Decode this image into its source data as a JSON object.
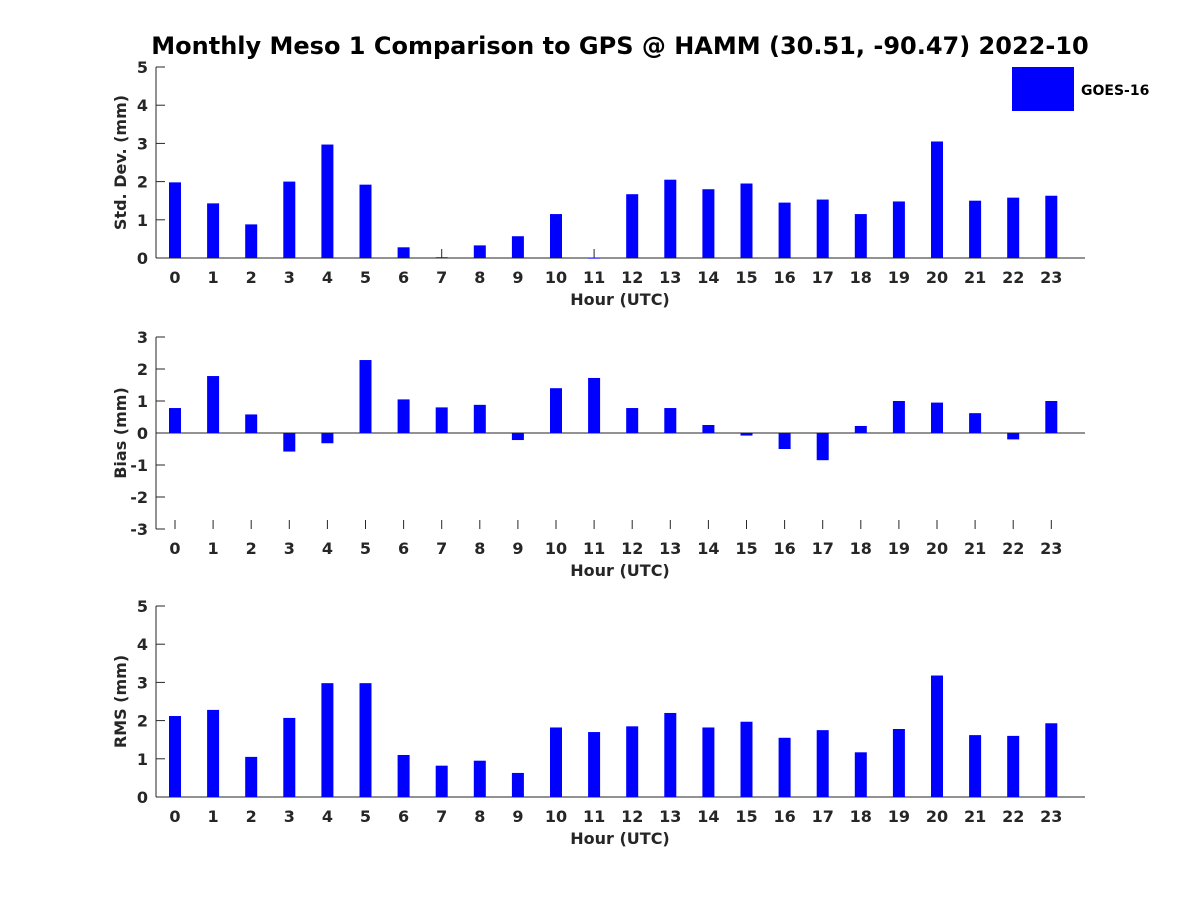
{
  "title": "Monthly Meso 1 Comparison to GPS @ HAMM (30.51, -90.47) 2022-10",
  "legend": {
    "label": "GOES-16",
    "color": "#0000ff",
    "placement": "top-right"
  },
  "chart_data": [
    {
      "type": "bar",
      "ylabel": "Std. Dev. (mm)",
      "xlabel": "Hour (UTC)",
      "ylim": [
        0,
        5
      ],
      "yticks": [
        0,
        1,
        2,
        3,
        4,
        5
      ],
      "categories": [
        "0",
        "1",
        "2",
        "3",
        "4",
        "5",
        "6",
        "7",
        "8",
        "9",
        "10",
        "11",
        "12",
        "13",
        "14",
        "15",
        "16",
        "17",
        "18",
        "19",
        "20",
        "21",
        "22",
        "23"
      ],
      "series": [
        {
          "values": [
            1.98,
            1.43,
            0.88,
            2.0,
            2.97,
            1.92,
            0.28,
            0.02,
            0.33,
            0.57,
            1.15,
            0.0,
            1.67,
            2.05,
            1.8,
            1.95,
            1.45,
            1.53,
            1.15,
            1.48,
            3.05,
            1.5,
            1.58,
            1.63
          ]
        }
      ],
      "color": "#0000ff",
      "grid": false
    },
    {
      "type": "bar",
      "ylabel": "Bias (mm)",
      "xlabel": "Hour (UTC)",
      "ylim": [
        -3,
        3
      ],
      "yticks": [
        -3,
        -2,
        -1,
        0,
        1,
        2,
        3
      ],
      "categories": [
        "0",
        "1",
        "2",
        "3",
        "4",
        "5",
        "6",
        "7",
        "8",
        "9",
        "10",
        "11",
        "12",
        "13",
        "14",
        "15",
        "16",
        "17",
        "18",
        "19",
        "20",
        "21",
        "22",
        "23"
      ],
      "series": [
        {
          "values": [
            0.78,
            1.78,
            0.58,
            -0.58,
            -0.32,
            2.28,
            1.05,
            0.8,
            0.88,
            -0.22,
            1.4,
            1.72,
            0.78,
            0.78,
            0.25,
            -0.08,
            -0.5,
            -0.85,
            0.22,
            1.0,
            0.95,
            0.62,
            -0.2,
            1.0
          ]
        }
      ],
      "color": "#0000ff",
      "grid": false
    },
    {
      "type": "bar",
      "ylabel": "RMS (mm)",
      "xlabel": "Hour (UTC)",
      "ylim": [
        0,
        5
      ],
      "yticks": [
        0,
        1,
        2,
        3,
        4,
        5
      ],
      "categories": [
        "0",
        "1",
        "2",
        "3",
        "4",
        "5",
        "6",
        "7",
        "8",
        "9",
        "10",
        "11",
        "12",
        "13",
        "14",
        "15",
        "16",
        "17",
        "18",
        "19",
        "20",
        "21",
        "22",
        "23"
      ],
      "series": [
        {
          "values": [
            2.12,
            2.28,
            1.05,
            2.07,
            2.98,
            2.98,
            1.1,
            0.82,
            0.95,
            0.63,
            1.82,
            1.7,
            1.85,
            2.2,
            1.82,
            1.97,
            1.55,
            1.75,
            1.17,
            1.78,
            3.18,
            1.62,
            1.6,
            1.93
          ]
        }
      ],
      "color": "#0000ff",
      "grid": false
    }
  ]
}
